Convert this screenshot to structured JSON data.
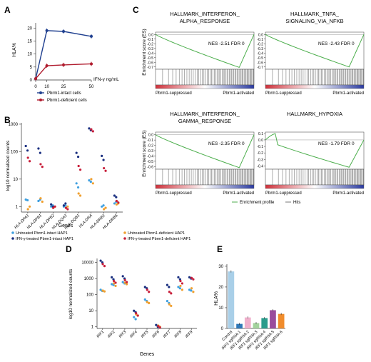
{
  "panel_labels": [
    "A",
    "B",
    "C",
    "D",
    "E"
  ],
  "colors": {
    "intact": "#1f3f8f",
    "deficient": "#b01c2e",
    "untreated_intact": "#3fa0e0",
    "untreated_deficient": "#f0a030",
    "treated_intact": "#1a2f80",
    "treated_deficient": "#c81e3a",
    "gsea_line": "#4cae4c",
    "hits": "#333333",
    "bar_control": "#a9cfe8",
    "bar_g1": "#2f78b8",
    "bar_g2": "#f0b0cc",
    "bar_g3": "#a3d39c",
    "bar_g4": "#2a9c8c",
    "bar_g5": "#9a4c9c",
    "bar_g6": "#f08c2c"
  },
  "chart_data": [
    {
      "panel": "A",
      "type": "line",
      "xlabel": "IFN-γ ng/mL",
      "ylabel": "HLA%",
      "x": [
        0,
        10,
        25,
        50
      ],
      "xticks": [
        "0",
        "10",
        "25",
        "50"
      ],
      "yticks": [
        "0",
        "5",
        "10",
        "15",
        "20"
      ],
      "ylim": [
        0,
        22
      ],
      "series": [
        {
          "name": "Pbrm1-intact cells",
          "values": [
            0.5,
            19,
            18.7,
            16.8
          ]
        },
        {
          "name": "Pbrm1-deficient cells",
          "values": [
            0.5,
            5.5,
            5.8,
            6.2
          ]
        }
      ],
      "legend": "below"
    },
    {
      "panel": "B",
      "type": "scatter",
      "xlabel": "Genes",
      "ylabel": "log10 normalized counts",
      "yticks": [
        "1",
        "10",
        "100",
        "1000"
      ],
      "categories": [
        "HLA-DPA1",
        "HLA-DPB1",
        "HLA-DPB2",
        "HLA-DQA1",
        "HLA-DQB1",
        "HLA-DRA",
        "HLA-DRB1",
        "HLA-DRB5"
      ],
      "series": [
        {
          "name": "Untreated Pbrm1-intact HAP1",
          "values": [
            [
              1.8,
              1.7
            ],
            [
              1.6,
              1.8
            ],
            [
              1.0,
              1.1
            ],
            [
              1.0,
              1.1
            ],
            [
              7,
              5
            ],
            [
              9,
              8
            ],
            [
              1.0,
              1.1
            ],
            [
              1.3,
              1.5
            ]
          ]
        },
        {
          "name": "Untreated Pbrm1-deficient HAP1",
          "values": [
            [
              0.8,
              1.0
            ],
            [
              2,
              1.5
            ],
            [
              0.9,
              1.0
            ],
            [
              0.9,
              1.0
            ],
            [
              3,
              2.5
            ],
            [
              10,
              7
            ],
            [
              0.8,
              0.9
            ],
            [
              1.2,
              1.3
            ]
          ]
        },
        {
          "name": "IFN-γ-treated Pbrm1-intact HAP1",
          "values": [
            [
              160,
              110
            ],
            [
              130,
              90
            ],
            [
              1.2,
              1.0
            ],
            [
              1.1,
              1.3
            ],
            [
              90,
              65
            ],
            [
              700,
              600
            ],
            [
              70,
              50
            ],
            [
              2.5,
              2.2
            ]
          ]
        },
        {
          "name": "IFN-γ-treated Pbrm1-deficient HAP1",
          "values": [
            [
              60,
              45
            ],
            [
              35,
              28
            ],
            [
              0.9,
              1.0
            ],
            [
              0.9,
              0.8
            ],
            [
              30,
              22
            ],
            [
              650,
              550
            ],
            [
              25,
              20
            ],
            [
              1.6,
              1.4
            ]
          ]
        }
      ],
      "legend": "below"
    },
    {
      "panel": "C",
      "type": "line",
      "ylabel": "Enrichment score (ES)",
      "xticks_left": "Pbrm1-suppressed",
      "xticks_right": "Pbrm1-activated",
      "legend": [
        "Enrichment profile",
        "Hits"
      ],
      "subplots": [
        {
          "title": "HALLMARK_INTERFERON_ ALPHA_RESPONSE",
          "annotation": "NES -2.51 FDR 0",
          "yticks": [
            "0.0",
            "-0.1",
            "-0.2",
            "-0.3",
            "-0.4",
            "-0.5",
            "-0.6",
            "-0.7"
          ],
          "ylim": [
            -0.75,
            0.05
          ],
          "min": -0.71
        },
        {
          "title": "HALLMARK_TNFA_ SIGNALING_VIA_NFKB",
          "annotation": "NES -2.43 FDR 0",
          "yticks": [
            "0.0",
            "-0.1",
            "-0.2",
            "-0.3",
            "-0.4",
            "-0.5",
            "-0.6",
            "-0.7"
          ],
          "ylim": [
            -0.75,
            0.05
          ],
          "min": -0.7
        },
        {
          "title": "HALLMARK_INTERFERON_ GAMMA_RESPONSE",
          "annotation": "NES -2.35 FDR 0",
          "yticks": [
            "0.0",
            "-0.1",
            "-0.2",
            "-0.3",
            "-0.4",
            "-0.5",
            "-0.6"
          ],
          "ylim": [
            -0.65,
            0.05
          ],
          "min": -0.62
        },
        {
          "title": "HALLMARK_HYPOXIA",
          "annotation": "NES -1.79 FDR 0",
          "yticks": [
            "0.1",
            "0.0",
            "-0.1",
            "-0.2",
            "-0.3",
            "-0.4"
          ],
          "ylim": [
            -0.45,
            0.12
          ],
          "min": -0.42
        }
      ]
    },
    {
      "panel": "D",
      "type": "scatter",
      "xlabel": "Genes",
      "ylabel": "log10 normalized counts",
      "yticks": [
        "1",
        "10",
        "100",
        "1000",
        "10000"
      ],
      "categories": [
        "IRF1",
        "IRF2",
        "IRF3",
        "IRF4",
        "IRF5",
        "IRF6",
        "IRF7",
        "IRF8",
        "IRF9"
      ],
      "series": [
        {
          "name": "Untreated Pbrm1-intact HAP1",
          "values": [
            [
              200,
              170
            ],
            [
              450,
              400
            ],
            [
              600,
              500
            ],
            [
              4,
              3
            ],
            [
              50,
              40
            ],
            [
              1.3,
              1.1
            ],
            [
              40,
              30
            ],
            [
              300,
              250
            ],
            [
              200,
              180
            ]
          ]
        },
        {
          "name": "Untreated Pbrm1-deficient HAP1",
          "values": [
            [
              180,
              160
            ],
            [
              500,
              350
            ],
            [
              550,
              450
            ],
            [
              6,
              5
            ],
            [
              35,
              30
            ],
            [
              1.2,
              1.0
            ],
            [
              25,
              20
            ],
            [
              350,
              200
            ],
            [
              250,
              150
            ]
          ]
        },
        {
          "name": "IFN-γ-treated Pbrm1-intact HAP1",
          "values": [
            [
              13000,
              10000
            ],
            [
              1200,
              900
            ],
            [
              1400,
              1000
            ],
            [
              10,
              8
            ],
            [
              300,
              250
            ],
            [
              1.3,
              1.0
            ],
            [
              400,
              300
            ],
            [
              1200,
              900
            ],
            [
              1200,
              1000
            ]
          ]
        },
        {
          "name": "IFN-γ-treated Pbrm1-deficient HAP1",
          "values": [
            [
              8000,
              6000
            ],
            [
              700,
              550
            ],
            [
              800,
              600
            ],
            [
              7,
              5
            ],
            [
              200,
              150
            ],
            [
              1.1,
              0.9
            ],
            [
              150,
              120
            ],
            [
              700,
              500
            ],
            [
              1100,
              900
            ]
          ]
        }
      ]
    },
    {
      "panel": "E",
      "type": "bar",
      "ylabel": "HLA%",
      "categories": [
        "Control",
        "IRF1 sgRNA 1",
        "IRF1 sgRNA 2",
        "IRF1 sgRNA 3",
        "IRF1 sgRNA 4",
        "IRF1 sgRNA 5",
        "IRF1 sgRNA 6"
      ],
      "values": [
        27.5,
        2.2,
        5.3,
        2.6,
        5.0,
        8.8,
        7.0
      ],
      "yticks": [
        "0",
        "10",
        "20",
        "30"
      ],
      "ylim": [
        0,
        31
      ]
    }
  ]
}
